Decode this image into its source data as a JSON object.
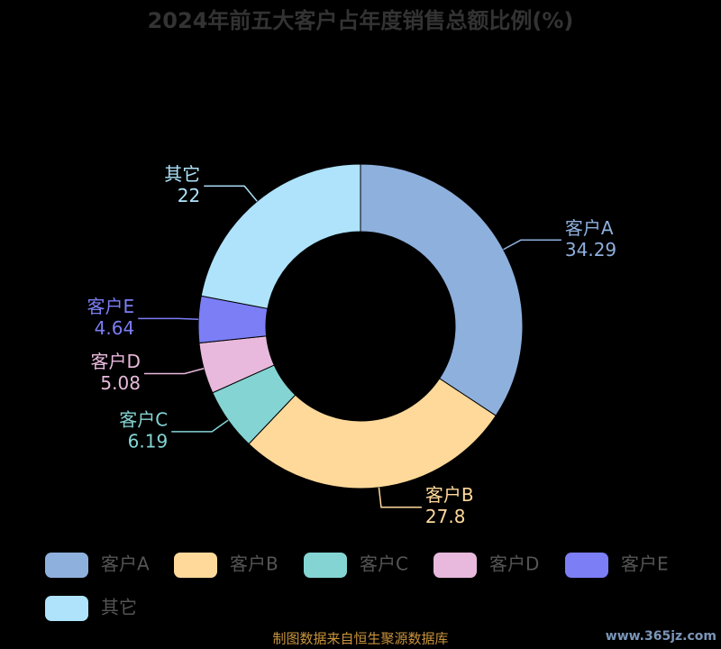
{
  "chart_data": {
    "type": "donut",
    "title": "2024年前五大客户占年度销售总额比例(%)",
    "categories": [
      "客户A",
      "客户B",
      "客户C",
      "客户D",
      "客户E",
      "其它"
    ],
    "values": [
      34.29,
      27.8,
      6.19,
      5.08,
      4.64,
      22
    ],
    "colors": [
      "#8eb0dd",
      "#ffd99a",
      "#84d4d4",
      "#e8b9dc",
      "#7b7ef5",
      "#aee3fb"
    ],
    "source": "制图数据来自恒生聚源数据库",
    "watermark": "www.365jz.com"
  }
}
